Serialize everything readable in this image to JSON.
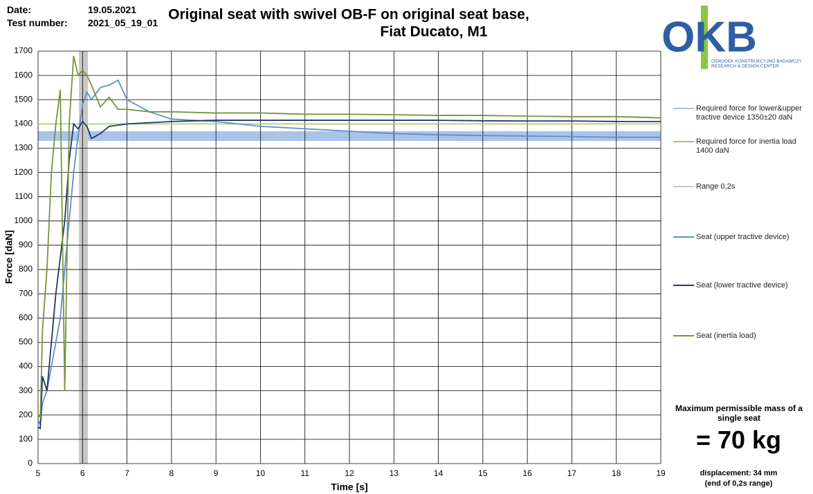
{
  "header": {
    "date_label": "Date:",
    "date": "19.05.2021",
    "test_label": "Test number:",
    "test_number": "2021_05_19_01"
  },
  "logo": {
    "mark": "OKB",
    "line1": "OŚRODEK KONSTRUKCYJNO BADAWCZY",
    "line2": "RESEARCH & DESIGN CENTER"
  },
  "summary": {
    "caption": "Maximum permissible mass of a single seat",
    "value": "= 70 kg",
    "displacement": "displacement: 34 mm",
    "note": "(end of 0,2s range)"
  },
  "chart_data": {
    "type": "line",
    "title": [
      "Original seat with swivel OB-F on original seat base,",
      "Fiat Ducato, M1"
    ],
    "x_label": "Time [s]",
    "y_label": "Force [daN]",
    "xlim": [
      5,
      19
    ],
    "xticks": [
      5,
      6,
      7,
      8,
      9,
      10,
      11,
      12,
      13,
      14,
      15,
      16,
      17,
      18,
      19
    ],
    "ylim": [
      0,
      1700
    ],
    "yticks": [
      0,
      100,
      200,
      300,
      400,
      500,
      600,
      700,
      800,
      900,
      1000,
      1100,
      1200,
      1300,
      1400,
      1500,
      1600,
      1700
    ],
    "grid": true,
    "x": [
      5,
      5.05,
      5.1,
      5.2,
      5.3,
      5.4,
      5.5,
      5.6,
      5.7,
      5.8,
      5.9,
      6.0,
      6.1,
      6.2,
      6.4,
      6.6,
      6.8,
      7,
      7.5,
      8,
      9,
      10,
      11,
      12,
      13,
      14,
      15,
      16,
      17,
      18,
      19
    ],
    "series": [
      {
        "name": "Required force for lower&upper tractive device 1350±20 daN",
        "color": "#a9c4e8",
        "center": 1350,
        "tolerance": 20
      },
      {
        "name": "Required force for inertia load 1400 daN",
        "color": "#a6c76a",
        "value": 1400
      },
      {
        "name": "Range 0,2s",
        "color": "#c8c8c8",
        "xrange": [
          5.92,
          6.12
        ]
      },
      {
        "name": "Seat (upper tractive device)",
        "color": "#5b8fd0",
        "values": [
          180,
          160,
          250,
          300,
          400,
          500,
          600,
          800,
          1000,
          1200,
          1350,
          1480,
          1530,
          1500,
          1550,
          1560,
          1580,
          1500,
          1450,
          1420,
          1410,
          1390,
          1380,
          1370,
          1360,
          1355,
          1352,
          1350,
          1348,
          1345,
          1345
        ]
      },
      {
        "name": "Seat (lower tractive device)",
        "color": "#1f3864",
        "values": [
          150,
          145,
          360,
          300,
          500,
          700,
          850,
          1000,
          1250,
          1400,
          1380,
          1410,
          1390,
          1340,
          1360,
          1390,
          1395,
          1400,
          1405,
          1410,
          1415,
          1415,
          1415,
          1415,
          1415,
          1415,
          1413,
          1412,
          1412,
          1410,
          1410
        ]
      },
      {
        "name": "Seat (inertia load)",
        "color": "#77933c",
        "values": [
          200,
          190,
          550,
          800,
          1200,
          1400,
          1540,
          300,
          1400,
          1680,
          1600,
          1620,
          1600,
          1560,
          1470,
          1510,
          1460,
          1460,
          1450,
          1450,
          1445,
          1445,
          1440,
          1440,
          1438,
          1435,
          1435,
          1432,
          1430,
          1430,
          1425
        ]
      }
    ]
  }
}
